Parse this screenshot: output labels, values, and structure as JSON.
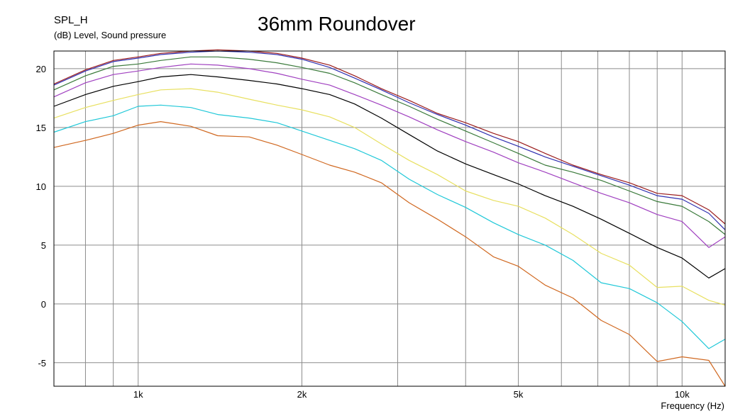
{
  "chart_data": {
    "type": "line",
    "title": "36mm Roundover",
    "ylabel": "SPL_H",
    "ylabel_sub": "(dB)  Level, Sound pressure",
    "xlabel": "Frequency  (Hz)",
    "x_scale": "log",
    "xlim": [
      700,
      12000
    ],
    "ylim": [
      -7,
      21.5
    ],
    "grid": true,
    "x_tick_labels": [
      {
        "value": 1000,
        "label": "1k"
      },
      {
        "value": 2000,
        "label": "2k"
      },
      {
        "value": 5000,
        "label": "5k"
      },
      {
        "value": 10000,
        "label": "10k"
      }
    ],
    "x_grid_values": [
      800,
      900,
      1000,
      2000,
      3000,
      4000,
      5000,
      6000,
      7000,
      8000,
      9000,
      10000
    ],
    "y_ticks": [
      20,
      15,
      10,
      5,
      0,
      -5
    ],
    "x": [
      700,
      800,
      900,
      1000,
      1100,
      1250,
      1400,
      1600,
      1800,
      2000,
      2250,
      2500,
      2800,
      3150,
      3550,
      4000,
      4500,
      5000,
      5600,
      6300,
      7100,
      8000,
      9000,
      10000,
      11200,
      12000
    ],
    "series": [
      {
        "color": "#9b1c1c",
        "values": [
          18.7,
          19.9,
          20.7,
          21.0,
          21.3,
          21.5,
          21.6,
          21.5,
          21.3,
          20.9,
          20.3,
          19.4,
          18.3,
          17.3,
          16.2,
          15.4,
          14.5,
          13.8,
          12.8,
          11.8,
          11.0,
          10.3,
          9.4,
          9.2,
          8.0,
          6.8
        ]
      },
      {
        "color": "#3030b0",
        "values": [
          18.6,
          19.8,
          20.6,
          20.9,
          21.2,
          21.4,
          21.5,
          21.4,
          21.2,
          20.8,
          20.1,
          19.2,
          18.2,
          17.1,
          16.1,
          15.2,
          14.2,
          13.4,
          12.5,
          11.7,
          10.9,
          10.1,
          9.2,
          8.9,
          7.7,
          6.3
        ]
      },
      {
        "color": "#3a7a3a",
        "values": [
          18.2,
          19.4,
          20.2,
          20.4,
          20.7,
          21.0,
          21.0,
          20.8,
          20.5,
          20.1,
          19.6,
          18.8,
          17.8,
          16.8,
          15.7,
          14.7,
          13.7,
          12.8,
          11.8,
          11.2,
          10.5,
          9.6,
          8.7,
          8.3,
          7.0,
          5.9
        ]
      },
      {
        "color": "#a040c0",
        "values": [
          17.6,
          18.8,
          19.5,
          19.8,
          20.1,
          20.4,
          20.3,
          20.0,
          19.6,
          19.1,
          18.6,
          17.8,
          16.9,
          15.9,
          14.8,
          13.8,
          12.9,
          12.0,
          11.2,
          10.3,
          9.4,
          8.6,
          7.6,
          7.0,
          4.8,
          5.7
        ]
      },
      {
        "color": "#000000",
        "values": [
          16.8,
          17.8,
          18.5,
          18.9,
          19.3,
          19.5,
          19.3,
          19.0,
          18.7,
          18.3,
          17.8,
          17.0,
          15.8,
          14.4,
          13.0,
          11.9,
          11.0,
          10.2,
          9.2,
          8.3,
          7.2,
          6.0,
          4.8,
          3.9,
          2.2,
          3.0
        ]
      },
      {
        "color": "#e8e060",
        "values": [
          15.8,
          16.7,
          17.3,
          17.8,
          18.2,
          18.3,
          18.0,
          17.4,
          16.9,
          16.5,
          15.9,
          15.0,
          13.6,
          12.2,
          11.0,
          9.6,
          8.8,
          8.3,
          7.3,
          5.9,
          4.3,
          3.3,
          1.4,
          1.5,
          0.3,
          -0.1
        ]
      },
      {
        "color": "#20c8d8",
        "values": [
          14.6,
          15.5,
          16.0,
          16.8,
          16.9,
          16.7,
          16.1,
          15.8,
          15.4,
          14.7,
          13.9,
          13.2,
          12.2,
          10.6,
          9.3,
          8.2,
          6.9,
          5.9,
          5.0,
          3.7,
          1.8,
          1.3,
          0.1,
          -1.5,
          -3.8,
          -3.0
        ]
      },
      {
        "color": "#d06820",
        "values": [
          13.3,
          13.9,
          14.5,
          15.2,
          15.5,
          15.1,
          14.3,
          14.2,
          13.5,
          12.7,
          11.8,
          11.2,
          10.3,
          8.6,
          7.2,
          5.7,
          4.0,
          3.2,
          1.6,
          0.5,
          -1.4,
          -2.6,
          -4.9,
          -4.5,
          -4.8,
          -7.0
        ]
      }
    ]
  }
}
